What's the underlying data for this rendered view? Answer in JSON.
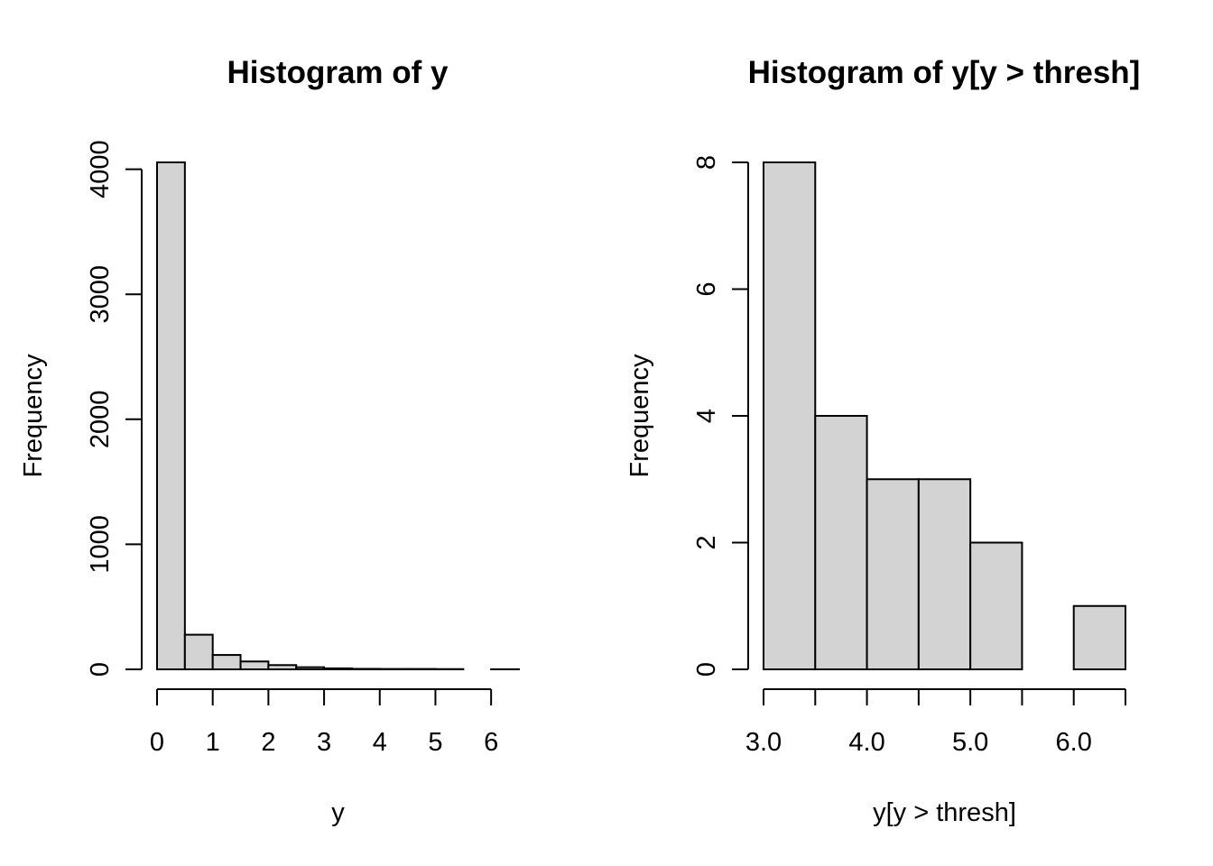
{
  "chart_data": [
    {
      "type": "bar",
      "title": "Histogram of y",
      "xlabel": "y",
      "ylabel": "Frequency",
      "bin_edges": [
        0,
        0.5,
        1,
        1.5,
        2,
        2.5,
        3,
        3.5,
        4,
        4.5,
        5,
        5.5,
        6,
        6.5
      ],
      "values": [
        4055,
        277,
        115,
        63,
        34,
        17,
        8,
        4,
        3,
        3,
        2,
        0,
        1
      ],
      "xlim": [
        0,
        6.5
      ],
      "ylim": [
        0,
        4055
      ],
      "xticks": [
        0,
        1,
        2,
        3,
        4,
        5,
        6
      ],
      "xtick_labels": [
        "0",
        "1",
        "2",
        "3",
        "4",
        "5",
        "6"
      ],
      "yticks": [
        0,
        1000,
        2000,
        3000,
        4000
      ],
      "ytick_labels": [
        "0",
        "1000",
        "2000",
        "3000",
        "4000"
      ],
      "bar_fill": "#d3d3d3",
      "grid": false
    },
    {
      "type": "bar",
      "title": "Histogram of y[y > thresh]",
      "xlabel": "y[y > thresh]",
      "ylabel": "Frequency",
      "bin_edges": [
        3.0,
        3.5,
        4.0,
        4.5,
        5.0,
        5.5,
        6.0,
        6.5
      ],
      "values": [
        8,
        4,
        3,
        3,
        2,
        0,
        1
      ],
      "xlim": [
        3.0,
        6.5
      ],
      "ylim": [
        0,
        8
      ],
      "xticks": [
        3.0,
        3.5,
        4.0,
        4.5,
        5.0,
        5.5,
        6.0,
        6.5
      ],
      "xtick_labels": [
        "3.0",
        "",
        "4.0",
        "",
        "5.0",
        "",
        "6.0",
        ""
      ],
      "yticks": [
        0,
        2,
        4,
        6,
        8
      ],
      "ytick_labels": [
        "0",
        "2",
        "4",
        "6",
        "8"
      ],
      "bar_fill": "#d3d3d3",
      "grid": false
    }
  ]
}
